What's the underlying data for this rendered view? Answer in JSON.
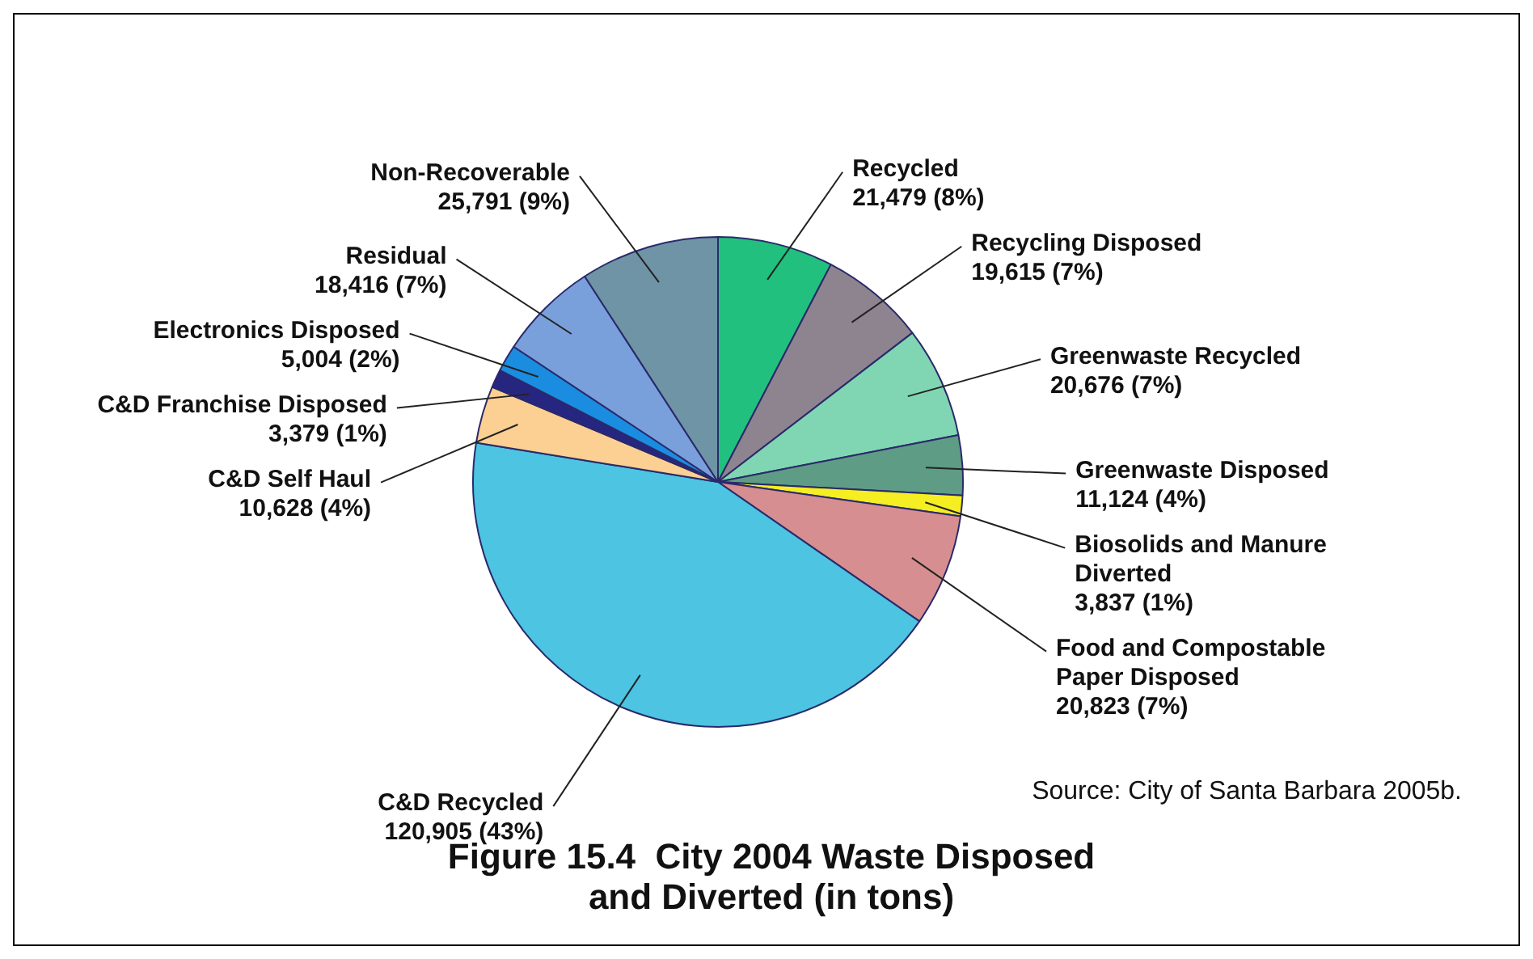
{
  "chart_data": {
    "type": "pie",
    "title": "Figure 15.4  City 2004 Waste Disposed and Diverted (in tons)",
    "categories": [
      "Recycled",
      "Recycling Disposed",
      "Greenwaste Recycled",
      "Greenwaste Disposed",
      "Biosolids and Manure Diverted",
      "Food and Compostable Paper Disposed",
      "C&D Recycled",
      "C&D Self Haul",
      "C&D Franchise Disposed",
      "Electronics Disposed",
      "Residual",
      "Non-Recoverable"
    ],
    "values": [
      21479,
      19615,
      20676,
      11124,
      3837,
      20823,
      120905,
      10628,
      3379,
      5004,
      18416,
      25791
    ],
    "value_labels": [
      "21,479 (8%)",
      "19,615 (7%)",
      "20,676 (7%)",
      "11,124 (4%)",
      "3,837 (1%)",
      "20,823 (7%)",
      "120,905 (43%)",
      "10,628 (4%)",
      "3,379 (1%)",
      "5,004 (2%)",
      "18,416 (7%)",
      "25,791 (9%)"
    ],
    "colors": [
      "#22c07e",
      "#8e8490",
      "#80d6b2",
      "#5e9c86",
      "#f4ee22",
      "#d68e90",
      "#4cc4e2",
      "#fccf92",
      "#262680",
      "#1b8de0",
      "#7aa0dc",
      "#6e94a6"
    ],
    "annotations": [
      "Source: City of Santa Barbara 2005b."
    ],
    "legend": false
  }
}
